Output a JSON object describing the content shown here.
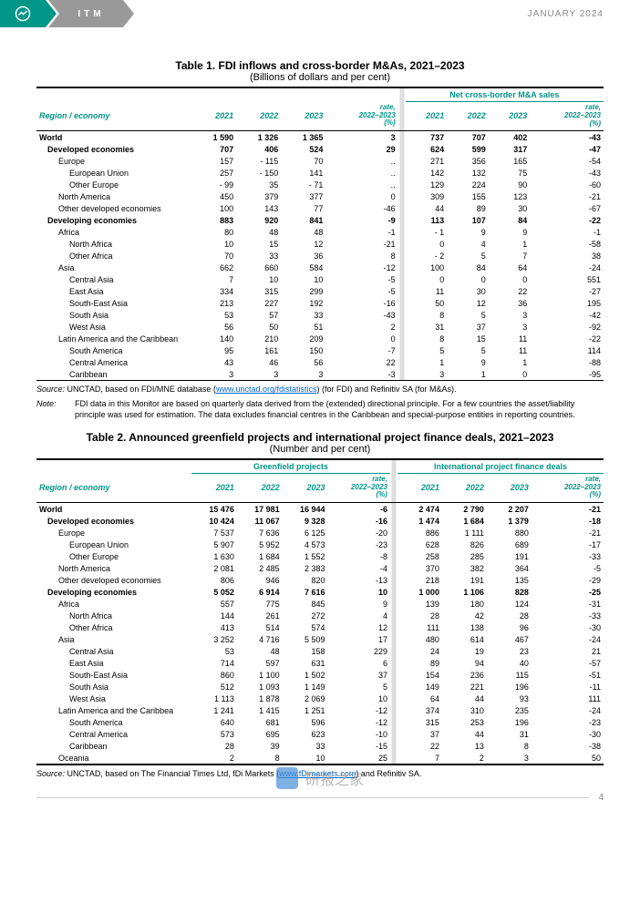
{
  "header": {
    "badge": "ITM",
    "date": "JANUARY 2024"
  },
  "table1": {
    "title": "Table 1. FDI inflows and cross-border M&As, 2021–2023",
    "subtitle": "(Billions of dollars and per cent)",
    "group_right": "Net cross-border M&A sales",
    "col_region": "Region / economy",
    "cols": [
      "2021",
      "2022",
      "2023",
      "rate, 2022–2023 (%)",
      "2021",
      "2022",
      "2023",
      "rate, 2022–2023 (%)"
    ],
    "rows": [
      {
        "l": "World",
        "b": 1,
        "i": 0,
        "v": [
          "1 590",
          "1 326",
          "1 365",
          "3",
          "737",
          "707",
          "402",
          "-43"
        ]
      },
      {
        "l": "Developed economies",
        "b": 1,
        "i": 1,
        "v": [
          "707",
          "406",
          "524",
          "29",
          "624",
          "599",
          "317",
          "-47"
        ]
      },
      {
        "l": "Europe",
        "b": 0,
        "i": 2,
        "v": [
          "157",
          "- 115",
          "70",
          "..",
          "271",
          "356",
          "165",
          "-54"
        ]
      },
      {
        "l": "European Union",
        "b": 0,
        "i": 3,
        "v": [
          "257",
          "- 150",
          "141",
          "..",
          "142",
          "132",
          "75",
          "-43"
        ]
      },
      {
        "l": "Other Europe",
        "b": 0,
        "i": 3,
        "v": [
          "- 99",
          "35",
          "- 71",
          "..",
          "129",
          "224",
          "90",
          "-60"
        ]
      },
      {
        "l": "North America",
        "b": 0,
        "i": 2,
        "v": [
          "450",
          "379",
          "377",
          "0",
          "309",
          "155",
          "123",
          "-21"
        ]
      },
      {
        "l": "Other developed economies",
        "b": 0,
        "i": 2,
        "v": [
          "100",
          "143",
          "77",
          "-46",
          "44",
          "89",
          "30",
          "-67"
        ]
      },
      {
        "l": "Developing economies",
        "b": 1,
        "i": 1,
        "v": [
          "883",
          "920",
          "841",
          "-9",
          "113",
          "107",
          "84",
          "-22"
        ]
      },
      {
        "l": "Africa",
        "b": 0,
        "i": 2,
        "v": [
          "80",
          "48",
          "48",
          "-1",
          "- 1",
          "9",
          "9",
          "-1"
        ]
      },
      {
        "l": "North Africa",
        "b": 0,
        "i": 3,
        "v": [
          "10",
          "15",
          "12",
          "-21",
          "0",
          "4",
          "1",
          "-58"
        ]
      },
      {
        "l": "Other Africa",
        "b": 0,
        "i": 3,
        "v": [
          "70",
          "33",
          "36",
          "8",
          "- 2",
          "5",
          "7",
          "38"
        ]
      },
      {
        "l": "Asia",
        "b": 0,
        "i": 2,
        "v": [
          "662",
          "660",
          "584",
          "-12",
          "100",
          "84",
          "64",
          "-24"
        ]
      },
      {
        "l": "Central Asia",
        "b": 0,
        "i": 3,
        "v": [
          "7",
          "10",
          "10",
          "-5",
          "0",
          "0",
          "0",
          "551"
        ]
      },
      {
        "l": "East Asia",
        "b": 0,
        "i": 3,
        "v": [
          "334",
          "315",
          "299",
          "-5",
          "11",
          "30",
          "22",
          "-27"
        ]
      },
      {
        "l": "South-East Asia",
        "b": 0,
        "i": 3,
        "v": [
          "213",
          "227",
          "192",
          "-16",
          "50",
          "12",
          "36",
          "195"
        ]
      },
      {
        "l": "South Asia",
        "b": 0,
        "i": 3,
        "v": [
          "53",
          "57",
          "33",
          "-43",
          "8",
          "5",
          "3",
          "-42"
        ]
      },
      {
        "l": "West Asia",
        "b": 0,
        "i": 3,
        "v": [
          "56",
          "50",
          "51",
          "2",
          "31",
          "37",
          "3",
          "-92"
        ]
      },
      {
        "l": "Latin America and the Caribbean",
        "b": 0,
        "i": 2,
        "v": [
          "140",
          "210",
          "209",
          "0",
          "8",
          "15",
          "11",
          "-22"
        ]
      },
      {
        "l": "South America",
        "b": 0,
        "i": 3,
        "v": [
          "95",
          "161",
          "150",
          "-7",
          "5",
          "5",
          "11",
          "114"
        ]
      },
      {
        "l": "Central America",
        "b": 0,
        "i": 3,
        "v": [
          "43",
          "46",
          "56",
          "22",
          "1",
          "9",
          "1",
          "-88"
        ]
      },
      {
        "l": "Caribbean",
        "b": 0,
        "i": 3,
        "v": [
          "3",
          "3",
          "3",
          "-3",
          "3",
          "1",
          "0",
          "-95"
        ]
      }
    ],
    "source_label": "Source:",
    "source_text_pre": "UNCTAD, based on FDI/MNE database (",
    "source_link": "www.unctad.org/fdistatistics",
    "source_text_post": ") (for FDI) and Refinitiv SA (for M&As).",
    "note_label": "Note:",
    "note_text": "FDI data in this Monitor are based on quarterly data derived from the (extended) directional principle. For a few countries the asset/liability principle was used for estimation. The data excludes financial centres in the Caribbean and special-purpose entities in reporting countries."
  },
  "table2": {
    "title": "Table 2. Announced greenfield projects and international project finance deals, 2021–2023",
    "subtitle": "(Number and per cent)",
    "group_left": "Greenfield projects",
    "group_right": "International project finance deals",
    "col_region": "Region / economy",
    "cols": [
      "2021",
      "2022",
      "2023",
      "rate, 2022–2023 (%)",
      "2021",
      "2022",
      "2023",
      "rate, 2022–2023 (%)"
    ],
    "rows": [
      {
        "l": "World",
        "b": 1,
        "i": 0,
        "v": [
          "15 476",
          "17 981",
          "16 944",
          "-6",
          "2 474",
          "2 790",
          "2 207",
          "-21"
        ]
      },
      {
        "l": "Developed economies",
        "b": 1,
        "i": 1,
        "v": [
          "10 424",
          "11 067",
          "9 328",
          "-16",
          "1 474",
          "1 684",
          "1 379",
          "-18"
        ]
      },
      {
        "l": "Europe",
        "b": 0,
        "i": 2,
        "v": [
          "7 537",
          "7 636",
          "6 125",
          "-20",
          "886",
          "1 111",
          "880",
          "-21"
        ]
      },
      {
        "l": "European Union",
        "b": 0,
        "i": 3,
        "v": [
          "5 907",
          "5 952",
          "4 573",
          "-23",
          "628",
          "826",
          "689",
          "-17"
        ]
      },
      {
        "l": "Other Europe",
        "b": 0,
        "i": 3,
        "v": [
          "1 630",
          "1 684",
          "1 552",
          "-8",
          "258",
          "285",
          "191",
          "-33"
        ]
      },
      {
        "l": "North America",
        "b": 0,
        "i": 2,
        "v": [
          "2 081",
          "2 485",
          "2 383",
          "-4",
          "370",
          "382",
          "364",
          "-5"
        ]
      },
      {
        "l": "Other developed economies",
        "b": 0,
        "i": 2,
        "v": [
          "806",
          "946",
          "820",
          "-13",
          "218",
          "191",
          "135",
          "-29"
        ]
      },
      {
        "l": "Developing economies",
        "b": 1,
        "i": 1,
        "v": [
          "5 052",
          "6 914",
          "7 616",
          "10",
          "1 000",
          "1 106",
          "828",
          "-25"
        ]
      },
      {
        "l": "Africa",
        "b": 0,
        "i": 2,
        "v": [
          "557",
          "775",
          "845",
          "9",
          "139",
          "180",
          "124",
          "-31"
        ]
      },
      {
        "l": "North Africa",
        "b": 0,
        "i": 3,
        "v": [
          "144",
          "261",
          "272",
          "4",
          "28",
          "42",
          "28",
          "-33"
        ]
      },
      {
        "l": "Other Africa",
        "b": 0,
        "i": 3,
        "v": [
          "413",
          "514",
          "574",
          "12",
          "111",
          "138",
          "96",
          "-30"
        ]
      },
      {
        "l": "Asia",
        "b": 0,
        "i": 2,
        "v": [
          "3 252",
          "4 716",
          "5 509",
          "17",
          "480",
          "614",
          "467",
          "-24"
        ]
      },
      {
        "l": "Central Asia",
        "b": 0,
        "i": 3,
        "v": [
          "53",
          "48",
          "158",
          "229",
          "24",
          "19",
          "23",
          "21"
        ]
      },
      {
        "l": "East Asia",
        "b": 0,
        "i": 3,
        "v": [
          "714",
          "597",
          "631",
          "6",
          "89",
          "94",
          "40",
          "-57"
        ]
      },
      {
        "l": "South-East Asia",
        "b": 0,
        "i": 3,
        "v": [
          "860",
          "1 100",
          "1 502",
          "37",
          "154",
          "236",
          "115",
          "-51"
        ]
      },
      {
        "l": "South Asia",
        "b": 0,
        "i": 3,
        "v": [
          "512",
          "1 093",
          "1 149",
          "5",
          "149",
          "221",
          "196",
          "-11"
        ]
      },
      {
        "l": "West Asia",
        "b": 0,
        "i": 3,
        "v": [
          "1 113",
          "1 878",
          "2 069",
          "10",
          "64",
          "44",
          "93",
          "111"
        ]
      },
      {
        "l": "Latin America and the Caribbea",
        "b": 0,
        "i": 2,
        "v": [
          "1 241",
          "1 415",
          "1 251",
          "-12",
          "374",
          "310",
          "235",
          "-24"
        ]
      },
      {
        "l": "South America",
        "b": 0,
        "i": 3,
        "v": [
          "640",
          "681",
          "596",
          "-12",
          "315",
          "253",
          "196",
          "-23"
        ]
      },
      {
        "l": "Central America",
        "b": 0,
        "i": 3,
        "v": [
          "573",
          "695",
          "623",
          "-10",
          "37",
          "44",
          "31",
          "-30"
        ]
      },
      {
        "l": "Caribbean",
        "b": 0,
        "i": 3,
        "v": [
          "28",
          "39",
          "33",
          "-15",
          "22",
          "13",
          "8",
          "-38"
        ]
      },
      {
        "l": "Oceania",
        "b": 0,
        "i": 2,
        "v": [
          "2",
          "8",
          "10",
          "25",
          "7",
          "2",
          "3",
          "50"
        ]
      }
    ],
    "source_label": "Source:",
    "source_text_pre": "UNCTAD, based on The Financial Times Ltd, fDi Markets (",
    "source_link": "www.fDimarkets.com",
    "source_text_post": ") and Refinitiv SA."
  },
  "page_number": "4",
  "watermark": "研报之家"
}
